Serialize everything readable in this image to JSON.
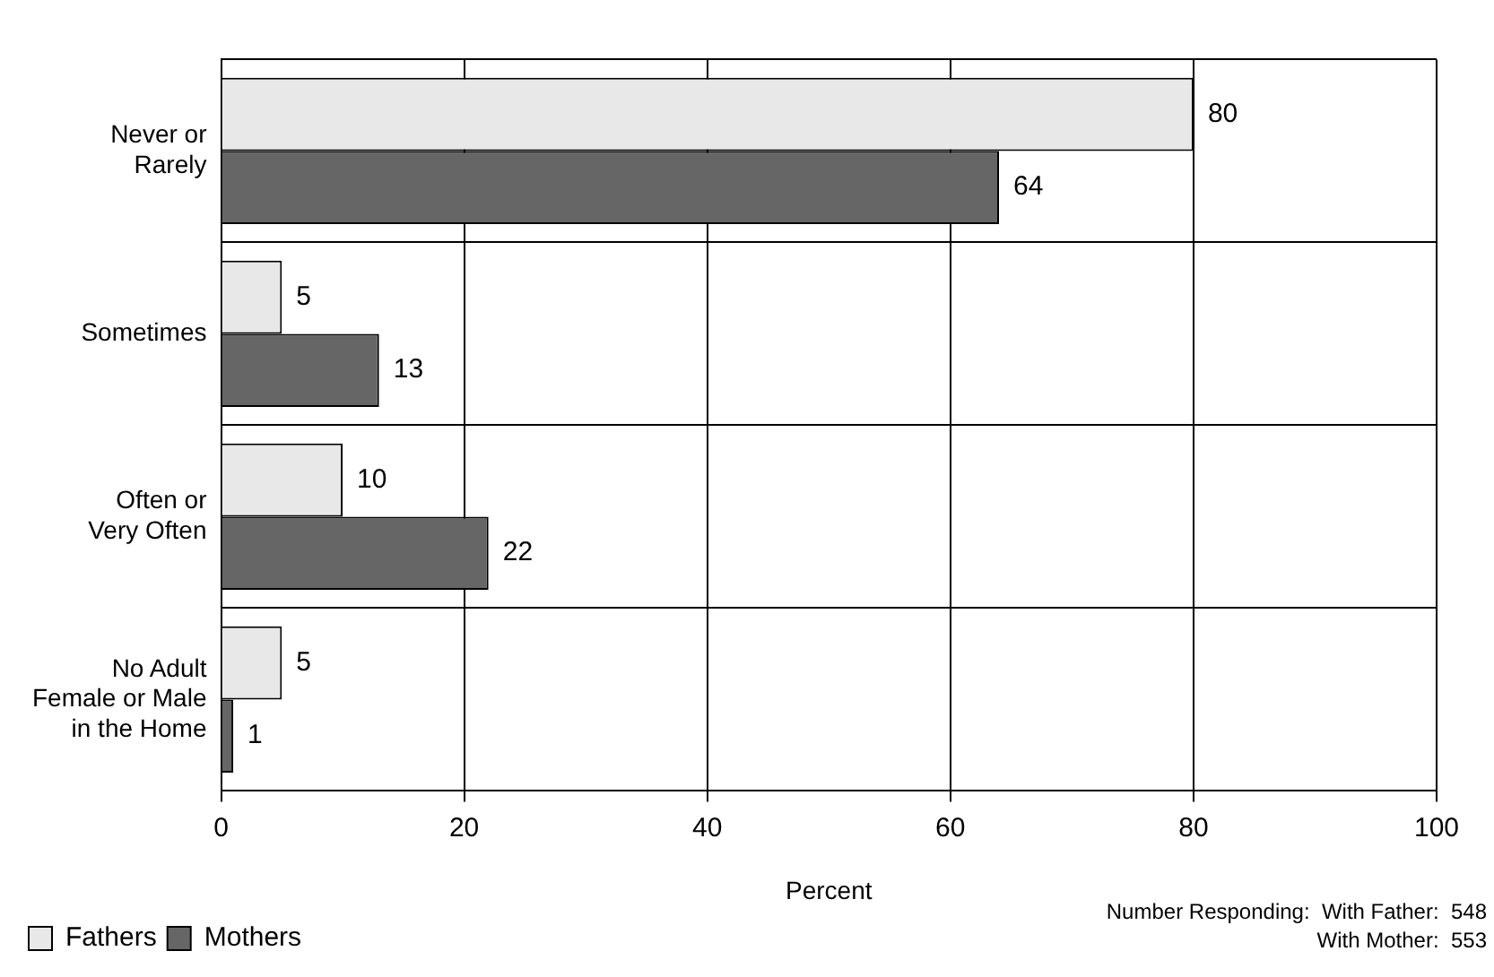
{
  "chart_data": {
    "type": "bar",
    "orientation": "horizontal",
    "xlabel": "Percent",
    "categories": [
      "Never or\nRarely",
      "Sometimes",
      "Often or\nVery Often",
      "No Adult\nFemale or Male\nin the Home"
    ],
    "series": [
      {
        "name": "Fathers",
        "color": "#e8e8e8",
        "values": [
          80,
          5,
          10,
          5
        ]
      },
      {
        "name": "Mothers",
        "color": "#666666",
        "values": [
          64,
          13,
          22,
          1
        ]
      }
    ],
    "xlim": [
      0,
      100
    ],
    "xticks": [
      0,
      20,
      40,
      60,
      80,
      100
    ],
    "grid": true,
    "legend": "bottom left",
    "data_labels": true,
    "annotations": [
      "Number Responding:  With Father:  548",
      "With Mother:  553"
    ]
  }
}
